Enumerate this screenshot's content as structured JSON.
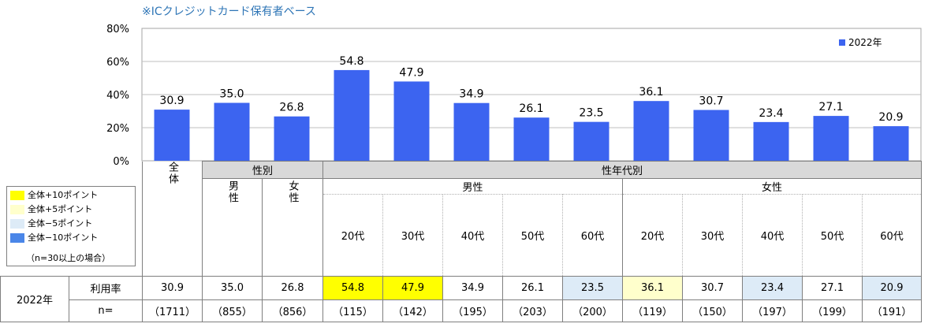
{
  "note": "※ICクレジットカード保有者ベース",
  "legend_key": {
    "items": [
      {
        "label": "全体+10ポイント",
        "color": "#ffff00"
      },
      {
        "label": "全体+5ポイント",
        "color": "#ffffcc"
      },
      {
        "label": "全体−5ポイント",
        "color": "#ddebf7"
      },
      {
        "label": "全体−10ポイント",
        "color": "#4a86e8"
      }
    ],
    "footnote": "（n=30以上の場合）"
  },
  "table": {
    "overall": "全体",
    "gender_group": "性別",
    "age_group": "性年代別",
    "male": "男性",
    "female": "女性",
    "year_label": "2022年",
    "rate_label": "利用率",
    "n_label": "n=",
    "ages": [
      "20代",
      "30代",
      "40代",
      "50代",
      "60代",
      "20代",
      "30代",
      "40代",
      "50代",
      "60代"
    ],
    "rates": [
      "30.9",
      "35.0",
      "26.8",
      "54.8",
      "47.9",
      "34.9",
      "26.1",
      "23.5",
      "36.1",
      "30.7",
      "23.4",
      "27.1",
      "20.9"
    ],
    "n": [
      "（1711）",
      "（855）",
      "（856）",
      "（115）",
      "（142）",
      "（195）",
      "（203）",
      "（200）",
      "（119）",
      "（150）",
      "（197）",
      "（199）",
      "（191）"
    ],
    "highlight": [
      "",
      "",
      "",
      "#ffff00",
      "#ffff00",
      "",
      "",
      "#ddebf7",
      "#ffffcc",
      "",
      "#ddebf7",
      "",
      "#ddebf7"
    ]
  },
  "chart_data": {
    "type": "bar",
    "categories": [
      "全体",
      "男性",
      "女性",
      "男性20代",
      "男性30代",
      "男性40代",
      "男性50代",
      "男性60代",
      "女性20代",
      "女性30代",
      "女性40代",
      "女性50代",
      "女性60代"
    ],
    "series": [
      {
        "name": "2022年",
        "values": [
          30.9,
          35.0,
          26.8,
          54.8,
          47.9,
          34.9,
          26.1,
          23.5,
          36.1,
          30.7,
          23.4,
          27.1,
          20.9
        ],
        "color": "#3c64f0"
      }
    ],
    "value_labels": [
      "30.9",
      "35.0",
      "26.8",
      "54.8",
      "47.9",
      "34.9",
      "26.1",
      "23.5",
      "36.1",
      "30.7",
      "23.4",
      "27.1",
      "20.9"
    ],
    "yticks": [
      "0%",
      "20%",
      "40%",
      "60%",
      "80%"
    ],
    "ylim": [
      0,
      80
    ],
    "grid": true,
    "legend_position": "top-right"
  }
}
